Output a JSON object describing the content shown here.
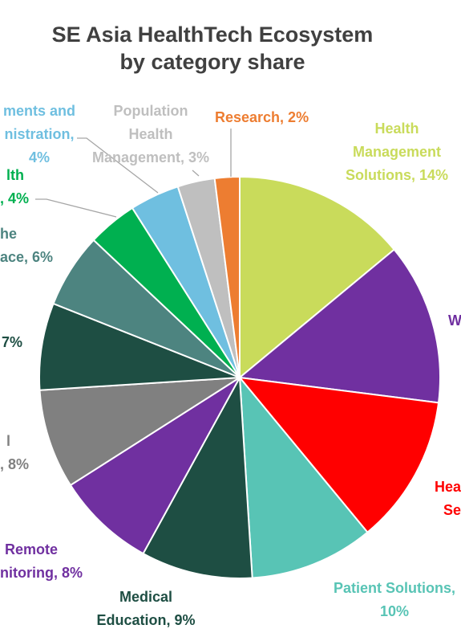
{
  "chart_data": {
    "type": "pie",
    "title": "SE Asia HealthTech Ecosystem",
    "subtitle": "by category share",
    "legend": "none",
    "slices": [
      {
        "label": "Health Management Solutions",
        "value": 14,
        "value_label": "14%",
        "color": "#C9DB5B"
      },
      {
        "label": "W",
        "value": 13,
        "value_label": "",
        "color": "#7030A0"
      },
      {
        "label": "Hea Se",
        "value": 12,
        "value_label": "",
        "color": "#FF0000"
      },
      {
        "label": "Patient Solutions,",
        "value": 10,
        "value_label": "10%",
        "color": "#58C4B5"
      },
      {
        "label": "Medical Education",
        "value": 9,
        "value_label": "9%",
        "color": "#1E4E43"
      },
      {
        "label": "Remote nitoring",
        "value": 8,
        "value_label": "8%",
        "color": "#7030A0"
      },
      {
        "label": "l",
        "value": 8,
        "value_label": "8%",
        "color": "#808080"
      },
      {
        "label": "",
        "value": 7,
        "value_label": "7%",
        "color": "#1E4E43"
      },
      {
        "label": "he ace",
        "value": 6,
        "value_label": "6%",
        "color": "#4D8480"
      },
      {
        "label": "lth",
        "value": 4,
        "value_label": "4%",
        "color": "#00B050"
      },
      {
        "label": "ments and nistration",
        "value": 4,
        "value_label": "4%",
        "color": "#6FBFE0"
      },
      {
        "label": "Population Health Management",
        "value": 3,
        "value_label": "3%",
        "color": "#BFBFBF"
      },
      {
        "label": "Research",
        "value": 2,
        "value_label": "2%",
        "color": "#ED7D31"
      }
    ]
  },
  "labels": {
    "research": "Research, 2%",
    "hms": [
      "Health",
      "Management",
      "Solutions, 14%"
    ],
    "w": "W",
    "hea": [
      "Hea",
      "Se"
    ],
    "patient": [
      "Patient Solutions,",
      "10%"
    ],
    "medical": [
      "Medical",
      "Education, 9%"
    ],
    "remote": [
      "Remote",
      "nitoring, 8%"
    ],
    "grey8": [
      "l",
      ", 8%"
    ],
    "dark7": "7%",
    "teal6": [
      "he",
      "ace, 6%"
    ],
    "green4": [
      "lth",
      ", 4%"
    ],
    "blue4": [
      "ments and",
      "nistration,",
      "4%"
    ],
    "pop": [
      "Population",
      "Health",
      "Management, 3%"
    ]
  }
}
